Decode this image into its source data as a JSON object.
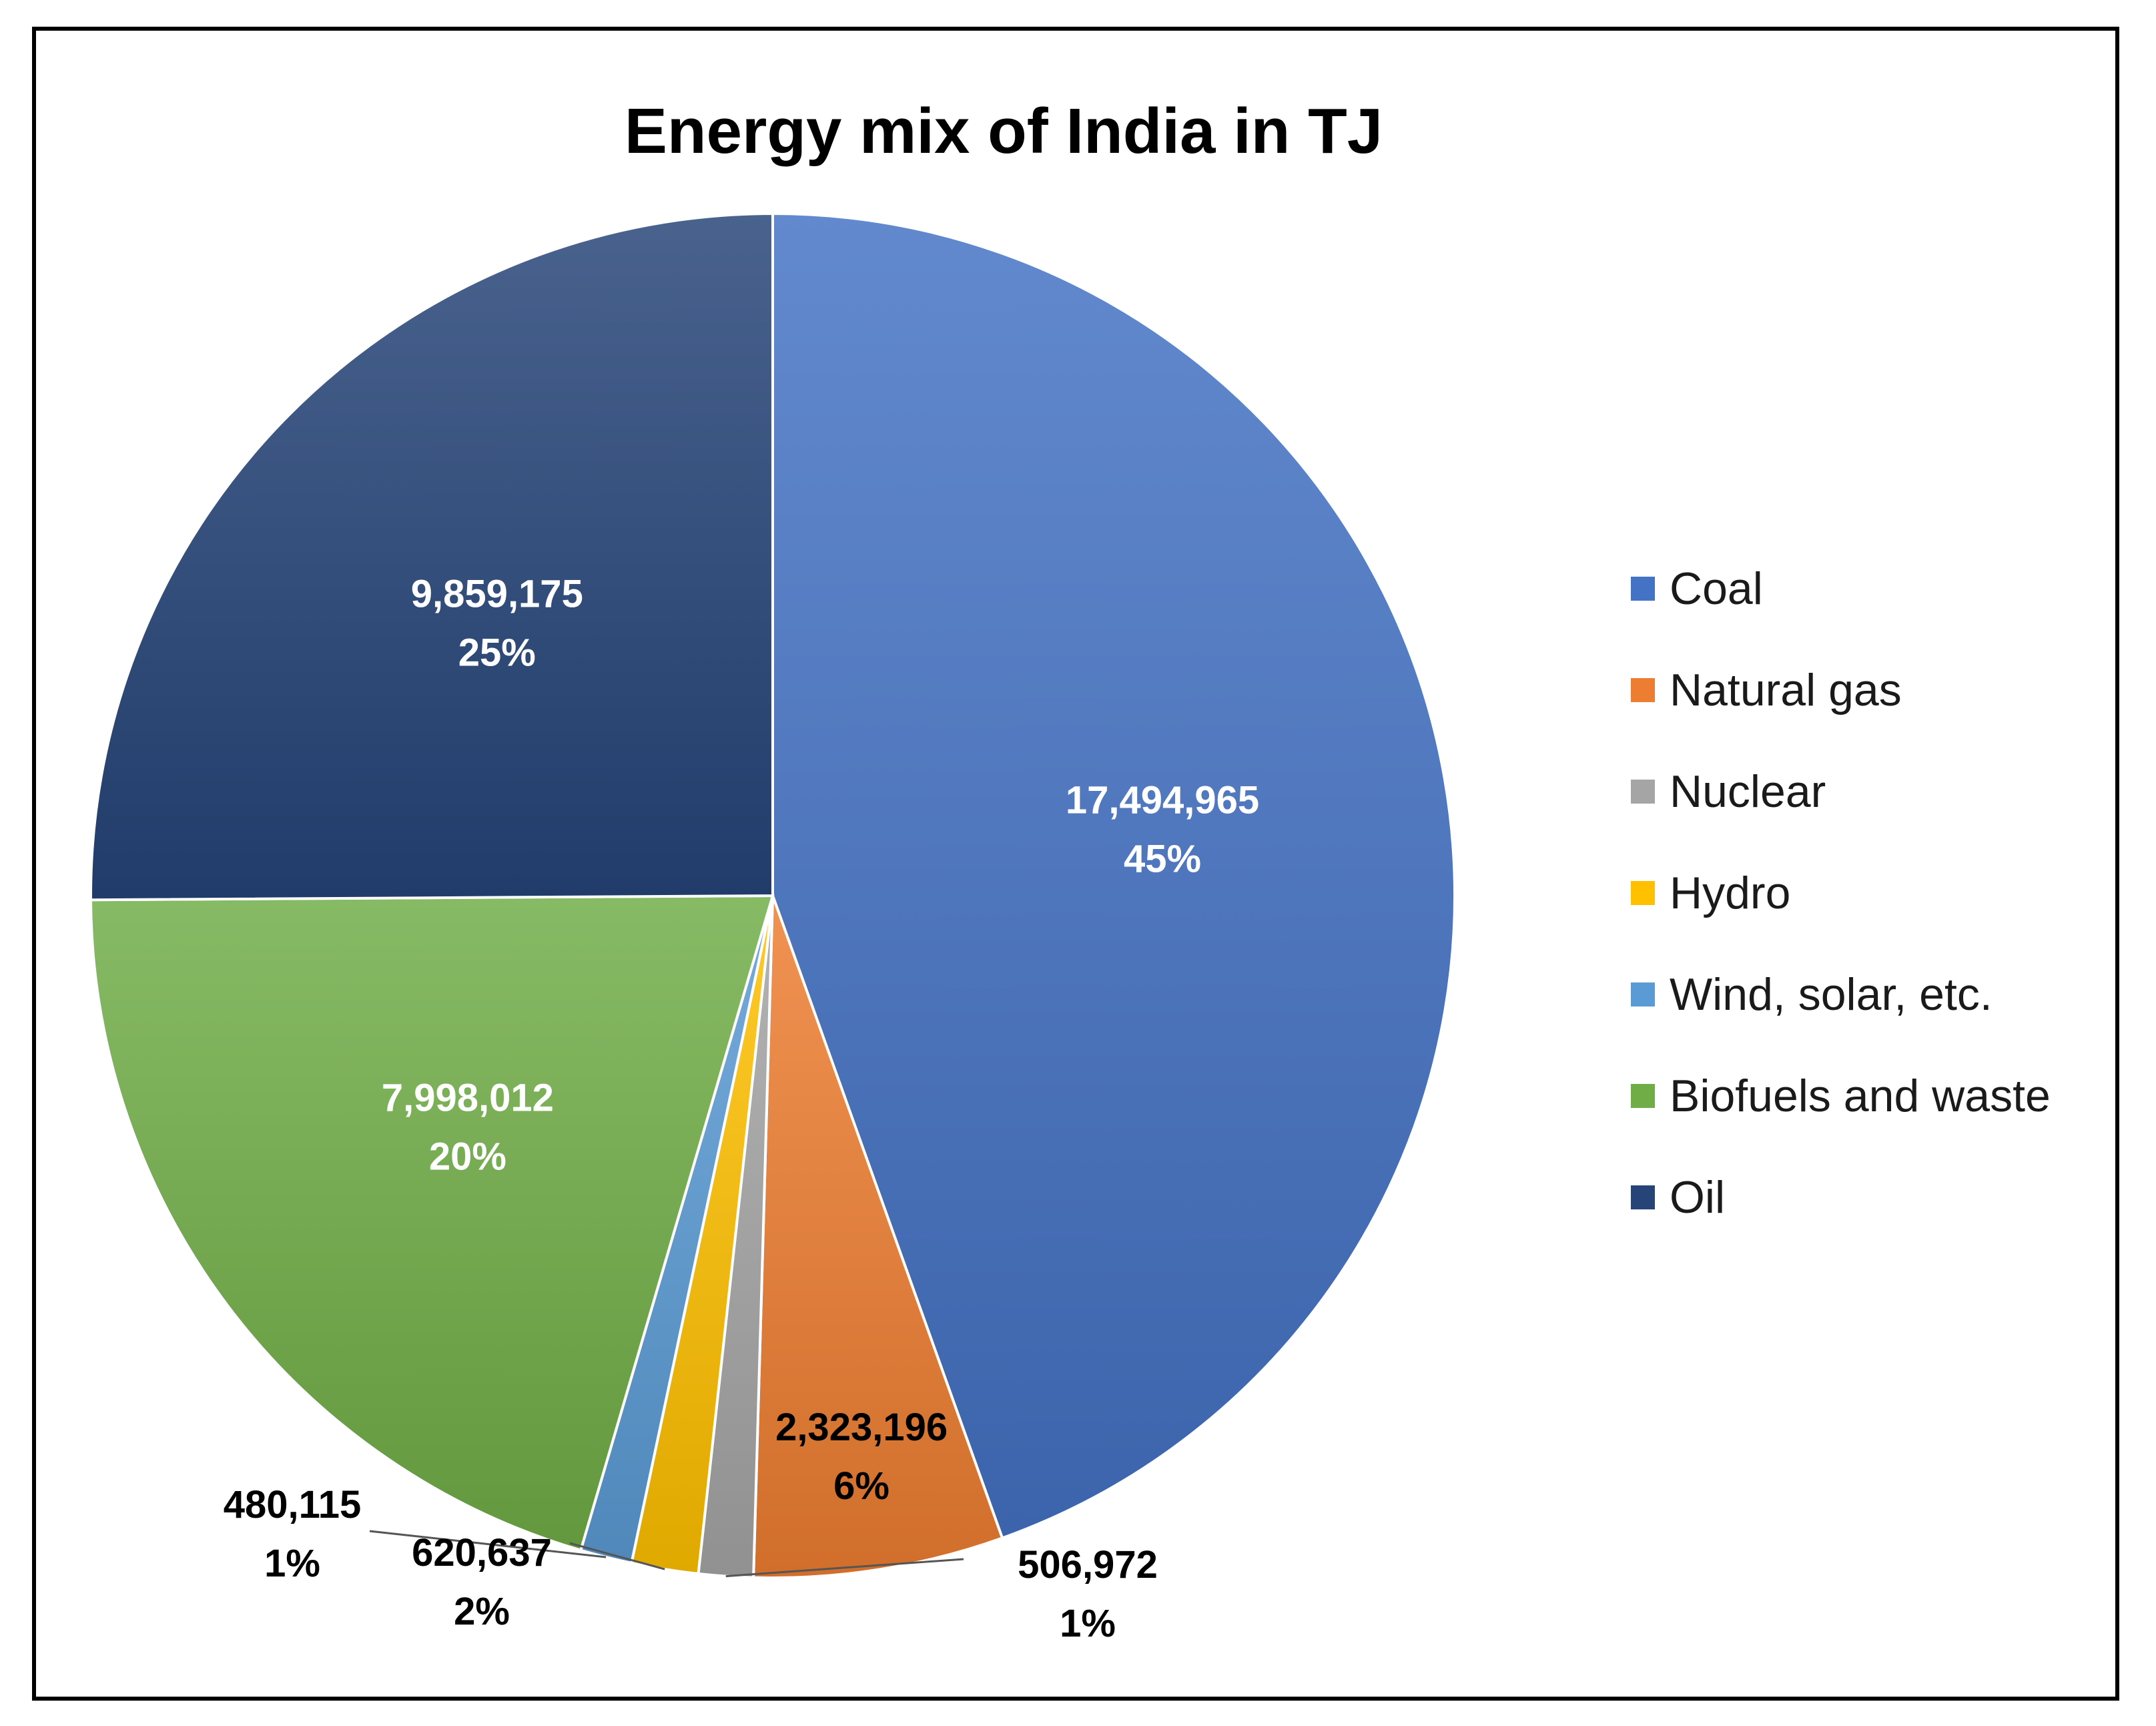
{
  "chart_data": {
    "type": "pie",
    "title": "Energy mix of India in TJ",
    "legend_position": "right",
    "start_angle_deg": 0,
    "direction": "clockwise",
    "slices": [
      {
        "name": "Coal",
        "value": 17494965,
        "value_label": "17,494,965",
        "percent_label": "45%",
        "color": "#4472C4",
        "label_color": "#ffffff"
      },
      {
        "name": "Natural gas",
        "value": 2323196,
        "value_label": "2,323,196",
        "percent_label": "6%",
        "color": "#ED7D31",
        "label_color": "#000000"
      },
      {
        "name": "Nuclear",
        "value": 506972,
        "value_label": "506,972",
        "percent_label": "1%",
        "color": "#A5A5A5",
        "label_color": "#000000"
      },
      {
        "name": "Hydro",
        "value": 620637,
        "value_label": "620,637",
        "percent_label": "2%",
        "color": "#FFC000",
        "label_color": "#000000"
      },
      {
        "name": "Wind, solar, etc.",
        "value": 480115,
        "value_label": "480,115",
        "percent_label": "1%",
        "color": "#5B9BD5",
        "label_color": "#000000"
      },
      {
        "name": "Biofuels and waste",
        "value": 7998012,
        "value_label": "7,998,012",
        "percent_label": "20%",
        "color": "#70AD47",
        "label_color": "#ffffff"
      },
      {
        "name": "Oil",
        "value": 9859175,
        "value_label": "9,859,175",
        "percent_label": "25%",
        "color": "#264478",
        "label_color": "#ffffff"
      }
    ]
  }
}
